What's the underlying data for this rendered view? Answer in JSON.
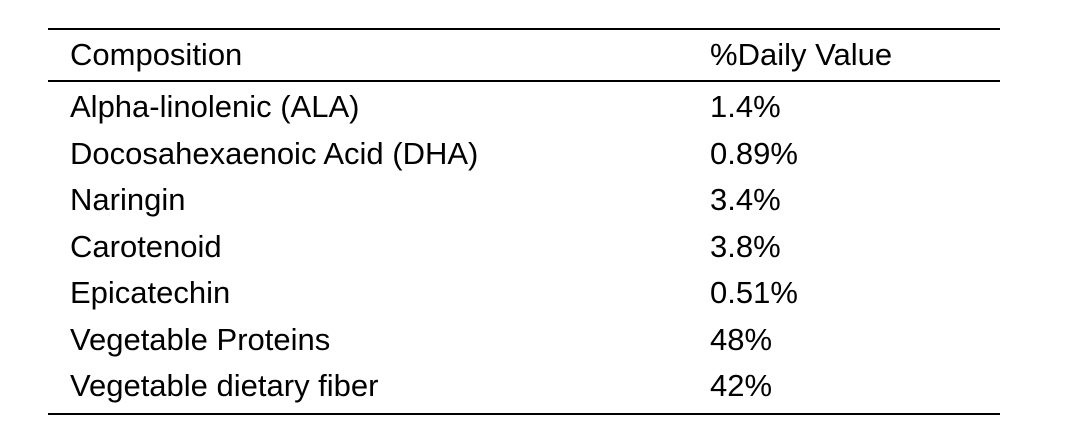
{
  "table": {
    "headers": [
      "Composition",
      "%Daily Value"
    ],
    "rows": [
      [
        "Alpha-linolenic (ALA)",
        "1.4%"
      ],
      [
        "Docosahexaenoic Acid (DHA)",
        "0.89%"
      ],
      [
        "Naringin",
        "3.4%"
      ],
      [
        "Carotenoid",
        "3.8%"
      ],
      [
        "Epicatechin",
        "0.51%"
      ],
      [
        "Vegetable Proteins",
        "48%"
      ],
      [
        "Vegetable dietary fiber",
        "42%"
      ]
    ]
  }
}
